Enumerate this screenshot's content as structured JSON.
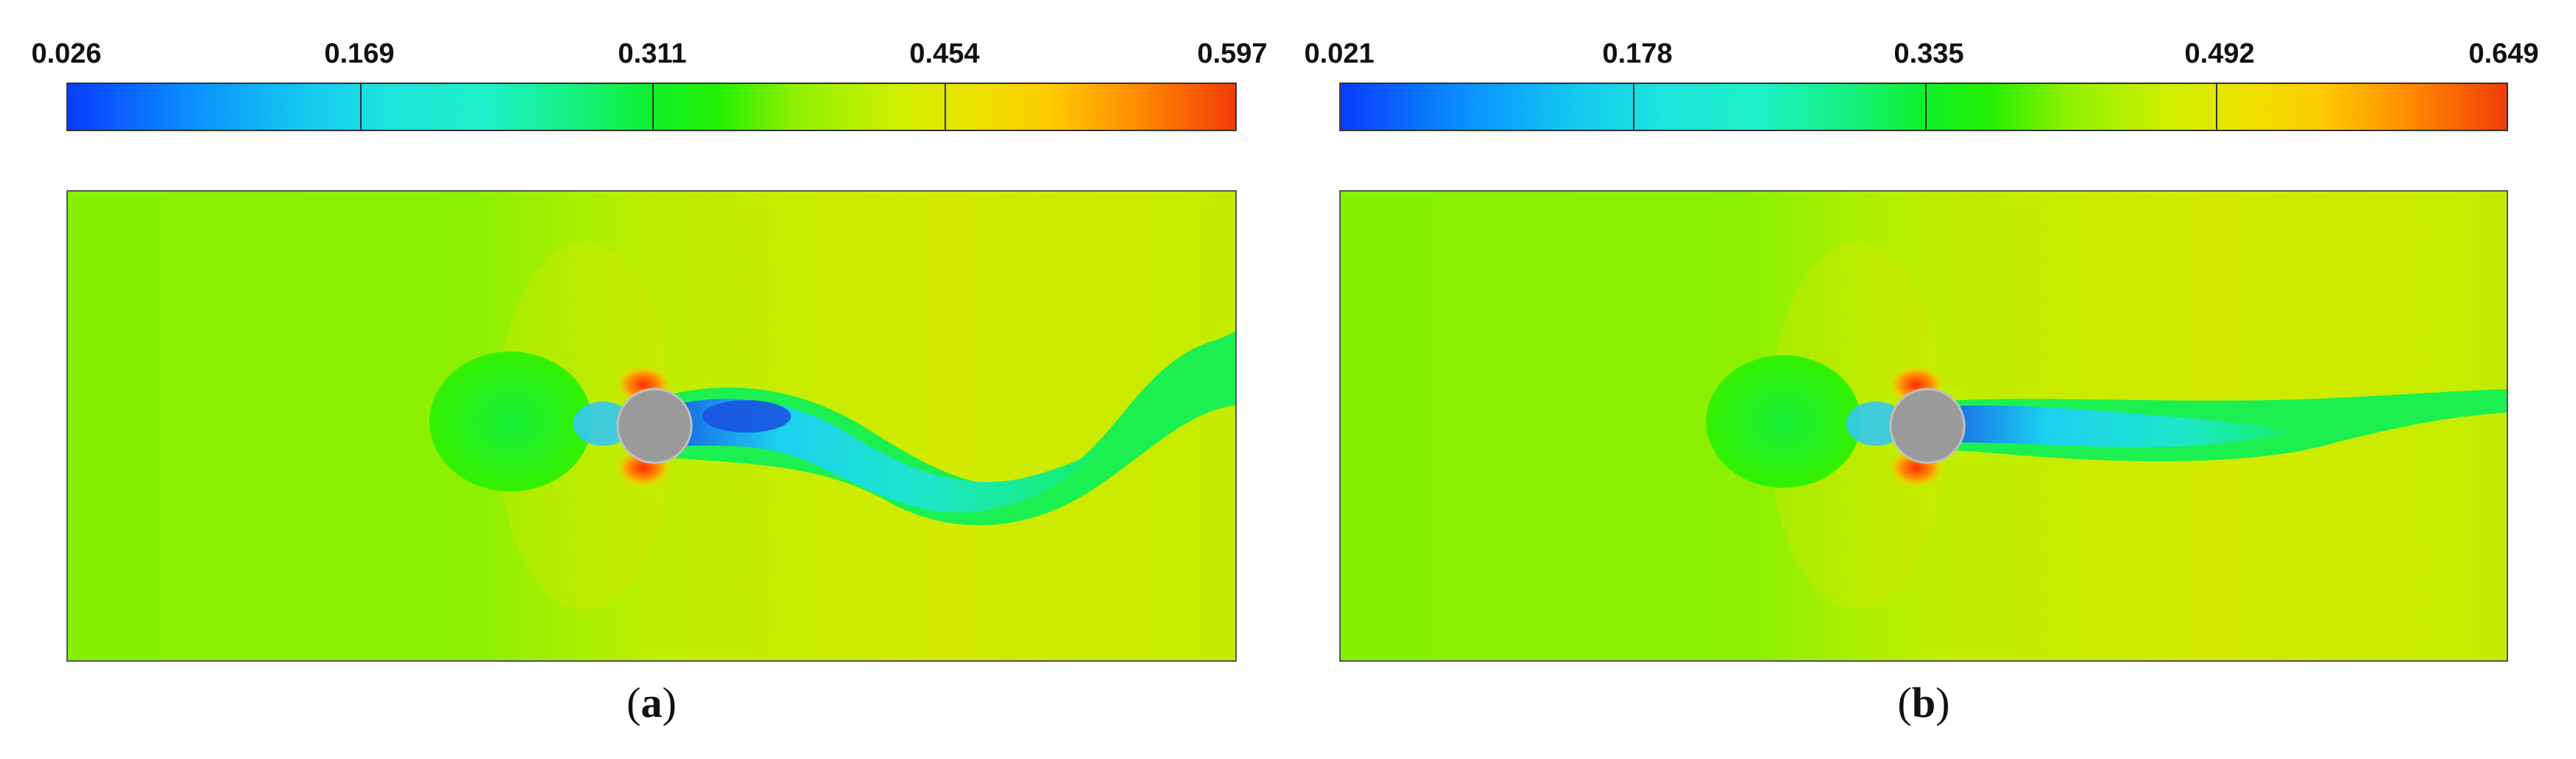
{
  "colors": {
    "obstacle": "#9a9a9a",
    "freestream": "#7ef000",
    "downstream": "#c8ee00",
    "wake_low": "#1ad2f0",
    "wake_core": "#1e6ae6",
    "stagnation": "#14e65a",
    "high": "#ff3c0a"
  },
  "panels": [
    {
      "id": "a",
      "caption_open": "(",
      "caption_letter": "a",
      "caption_close": ")",
      "colorbar": {
        "min": 0.026,
        "max": 0.597,
        "ticks": [
          "0.026",
          "0.169",
          "0.311",
          "0.454",
          "0.597"
        ]
      }
    },
    {
      "id": "b",
      "caption_open": "(",
      "caption_letter": "b",
      "caption_close": ")",
      "colorbar": {
        "min": 0.021,
        "max": 0.649,
        "ticks": [
          "0.021",
          "0.178",
          "0.335",
          "0.492",
          "0.649"
        ]
      }
    }
  ]
}
